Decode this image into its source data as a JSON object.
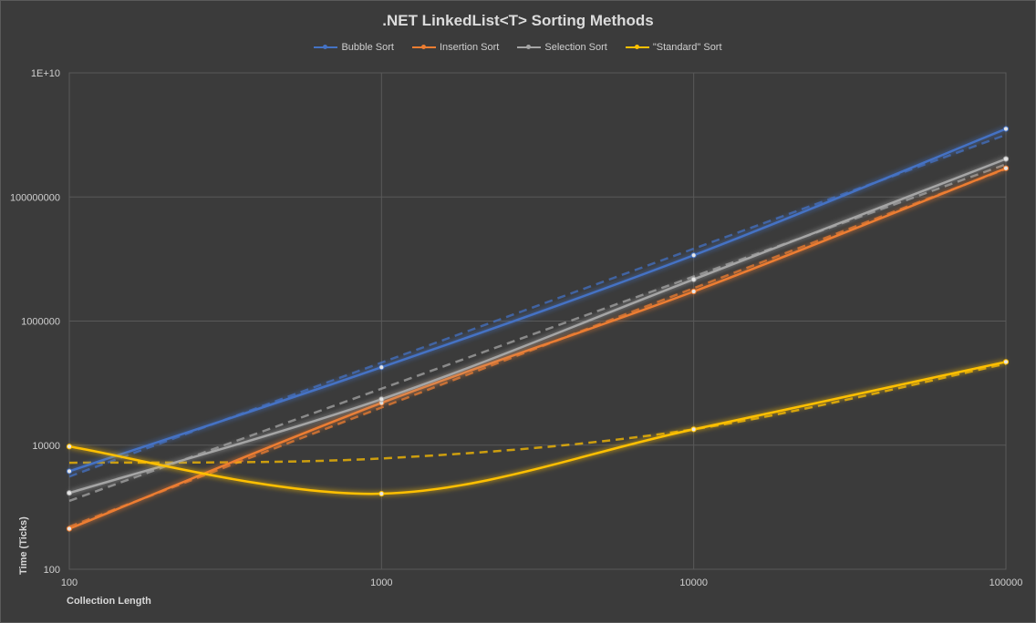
{
  "chart_data": {
    "type": "line",
    "title": ".NET LinkedList<T> Sorting Methods",
    "xlabel": "Collection Length",
    "ylabel": "Time (Ticks)",
    "x_scale": "log",
    "y_scale": "log",
    "xlim": [
      100,
      100000
    ],
    "ylim": [
      100,
      10000000000
    ],
    "x_ticks": [
      "100",
      "1000",
      "10000",
      "100000"
    ],
    "y_ticks": [
      "100",
      "10000",
      "1000000",
      "100000000",
      "1E+10"
    ],
    "grid": true,
    "legend_position": "top",
    "x": [
      100,
      1000,
      10000,
      100000
    ],
    "series": [
      {
        "name": "Bubble Sort",
        "color": "#4472c4",
        "values": [
          3800,
          180000,
          11500000,
          1250000000
        ],
        "trendline": true
      },
      {
        "name": "Insertion Sort",
        "color": "#ed7d31",
        "values": [
          450,
          48000,
          3000000,
          290000000
        ],
        "trendline": true
      },
      {
        "name": "Selection Sort",
        "color": "#a5a5a5",
        "values": [
          1700,
          55000,
          4700000,
          410000000
        ],
        "trendline": true
      },
      {
        "name": "\"Standard\" Sort",
        "color": "#ffc000",
        "values": [
          9500,
          1650,
          18000,
          220000
        ],
        "trendline": true,
        "trendline_values": [
          5200,
          6100,
          18000,
          205000
        ]
      }
    ]
  }
}
